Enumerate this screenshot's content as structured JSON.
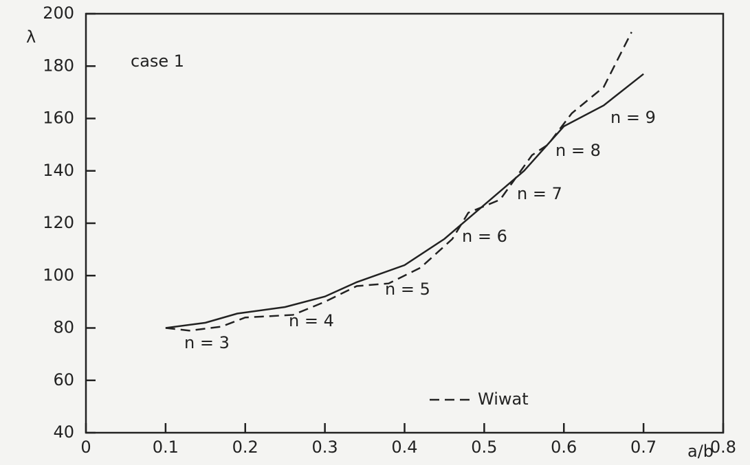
{
  "chart_data": {
    "type": "line",
    "x_label": "a/b",
    "y_label": "λ",
    "xlim": [
      0,
      0.8
    ],
    "ylim": [
      40,
      200
    ],
    "xticks": [
      0,
      0.1,
      0.2,
      0.3,
      0.4,
      0.5,
      0.6,
      0.7,
      0.8
    ],
    "yticks": [
      40,
      60,
      80,
      100,
      120,
      140,
      160,
      180,
      200
    ],
    "annotations": [
      "case 1",
      "n = 3",
      "n = 4",
      "n = 5",
      "n = 6",
      "n = 7",
      "n = 8",
      "n = 9"
    ],
    "series": [
      {
        "color": "#222222",
        "dash": false,
        "x": [
          0.1,
          0.15,
          0.19,
          0.25,
          0.3,
          0.34,
          0.4,
          0.45,
          0.5,
          0.55,
          0.6,
          0.65,
          0.7
        ],
        "values": [
          80,
          82,
          85.5,
          88,
          92,
          97.5,
          104,
          114,
          127,
          140,
          157,
          165,
          177
        ]
      },
      {
        "name": "Wiwat",
        "color": "#222222",
        "dash": true,
        "x": [
          0.1,
          0.13,
          0.17,
          0.2,
          0.26,
          0.3,
          0.34,
          0.38,
          0.42,
          0.46,
          0.48,
          0.52,
          0.56,
          0.58,
          0.61,
          0.65,
          0.685
        ],
        "values": [
          80,
          79,
          80.5,
          84,
          85,
          90,
          96,
          97,
          103,
          114,
          124,
          129,
          146,
          150,
          162,
          172,
          193
        ]
      }
    ]
  }
}
